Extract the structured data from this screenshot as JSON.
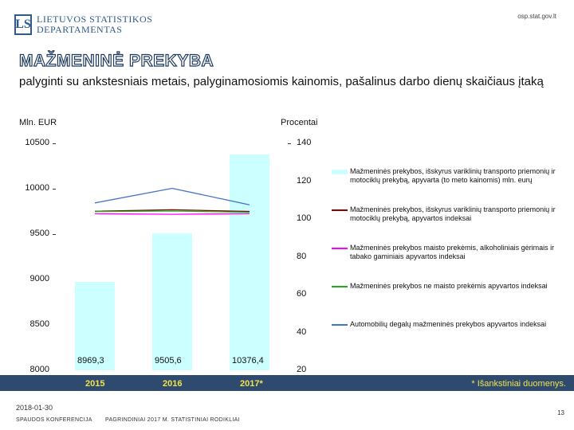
{
  "header": {
    "logo_mark": "LS",
    "logo_line1": "LIETUVOS STATISTIKOS",
    "logo_line2": "DEPARTAMENTAS",
    "site": "osp.stat.gov.lt"
  },
  "slide": {
    "title": "MAŽMENINĖ PREKYBA",
    "subtitle": "palyginti su ankstesniais metais, palyginamosiomis kainomis, pašalinus darbo dienų skaičiaus įtaką"
  },
  "chart_data": {
    "type": "bar",
    "left_unit": "Mln. EUR",
    "right_unit": "Procentai",
    "categories": [
      "2015",
      "2016",
      "2017*"
    ],
    "left_axis": {
      "ticks": [
        "10500",
        "10000",
        "9500",
        "9000",
        "8500",
        "8000"
      ],
      "ylim": [
        8000,
        10500
      ]
    },
    "right_axis": {
      "ticks": [
        "140",
        "120",
        "100",
        "80",
        "60",
        "40",
        "20"
      ],
      "ylim": [
        20,
        140
      ]
    },
    "bars": {
      "name": "Mažmeninės prekybos, išskyrus variklinių transporto priemonių ir motociklų prekybą, apyvarta (to meto kainomis) mln. eurų",
      "values": [
        8969.3,
        9505.6,
        10376.4
      ],
      "labels": [
        "8969,3",
        "9505,6",
        "10376,4"
      ],
      "color": "#ccffff"
    },
    "series": [
      {
        "name": "Mažmeninės prekybos, išskyrus variklinių transporto priemonių ir motociklų prekybą, apyvartos indeksai",
        "values": [
          104.1,
          104.9,
          104.0
        ],
        "color": "#8b0000"
      },
      {
        "name": "Mažmeninės prekybos maisto prekėmis, alkoholiniais gėrimais ir tabako gaminiais apyvartos indeksai",
        "values": [
          102.8,
          102.5,
          102.8
        ],
        "color": "#ff00ff"
      },
      {
        "name": "Mažmeninės prekybos ne maisto prekėmis apyvartos indeksai",
        "values": [
          103.9,
          104.2,
          103.6
        ],
        "color": "#22aa22"
      },
      {
        "name": "Automobilių degalų mažmeninės prekybos apyvartos indeksai",
        "values": [
          108.5,
          116.2,
          107.5
        ],
        "color": "#4472c4"
      }
    ],
    "legend_position": "right",
    "footnote": "* Išankstiniai duomenys."
  },
  "footer": {
    "date": "2018-01-30",
    "left": "SPAUDOS KONFERENCIJA",
    "middle": "PAGRINDINIAI 2017 M. STATISTINIAI RODIKLIAI",
    "page": "13"
  }
}
